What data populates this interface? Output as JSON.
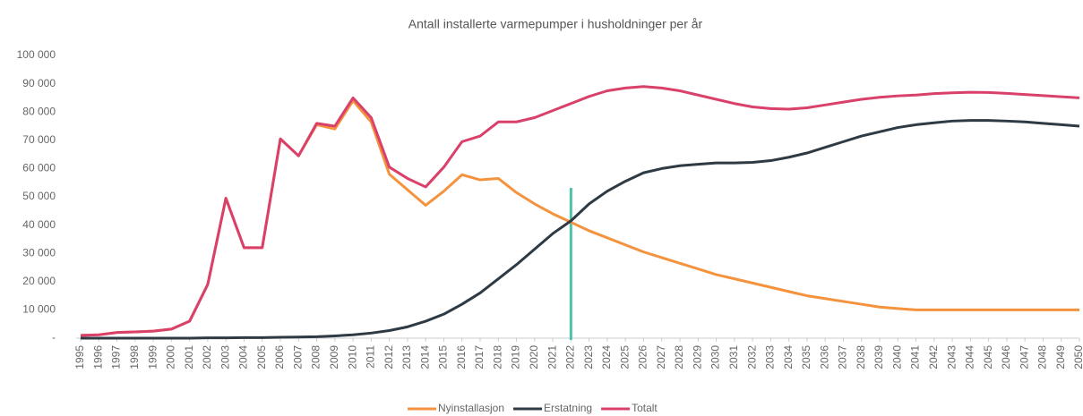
{
  "chart_data": {
    "type": "line",
    "title": "Antall installerte varmepumper i husholdninger per år",
    "categories": [
      "1995",
      "1996",
      "1997",
      "1998",
      "1999",
      "2000",
      "2001",
      "2002",
      "2003",
      "2004",
      "2005",
      "2006",
      "2007",
      "2008",
      "2009",
      "2010",
      "2011",
      "2012",
      "2013",
      "2014",
      "2015",
      "2016",
      "2017",
      "2018",
      "2019",
      "2020",
      "2021",
      "2022",
      "2023",
      "2024",
      "2025",
      "2026",
      "2027",
      "2028",
      "2029",
      "2030",
      "2031",
      "2032",
      "2033",
      "2034",
      "2035",
      "2036",
      "2037",
      "2038",
      "2039",
      "2040",
      "2041",
      "2042",
      "2043",
      "2044",
      "2045",
      "2046",
      "2047",
      "2048",
      "2049",
      "2050"
    ],
    "series": [
      {
        "name": "Nyinstallasjon",
        "color": "#f5923e",
        "values": [
          1000,
          1200,
          2000,
          2200,
          2500,
          3200,
          6000,
          19000,
          49500,
          32000,
          32000,
          70500,
          64500,
          75500,
          74000,
          84000,
          76500,
          58000,
          52500,
          47000,
          52000,
          57800,
          56000,
          56500,
          51500,
          47500,
          44000,
          41000,
          38000,
          35500,
          33000,
          30500,
          28500,
          26500,
          24500,
          22500,
          21000,
          19500,
          18000,
          16500,
          15000,
          14000,
          13000,
          12000,
          11000,
          10500,
          10000,
          10000,
          10000,
          10000,
          10000,
          10000,
          10000,
          10000,
          10000,
          10000
        ]
      },
      {
        "name": "Erstatning",
        "color": "#2e3a44",
        "values": [
          0,
          0,
          0,
          0,
          0,
          0,
          0,
          100,
          100,
          200,
          200,
          300,
          400,
          500,
          800,
          1200,
          1800,
          2700,
          4000,
          6000,
          8500,
          12000,
          16000,
          21000,
          26000,
          31500,
          37000,
          41500,
          47500,
          52000,
          55500,
          58500,
          60000,
          61000,
          61500,
          62000,
          62000,
          62200,
          62800,
          64000,
          65500,
          67500,
          69500,
          71500,
          73000,
          74500,
          75500,
          76200,
          76800,
          77000,
          77000,
          76800,
          76500,
          76000,
          75500,
          75000
        ]
      },
      {
        "name": "Totalt",
        "color": "#d9406a",
        "values": [
          1000,
          1200,
          2000,
          2200,
          2500,
          3200,
          6000,
          19000,
          49500,
          32000,
          32000,
          70500,
          64500,
          76000,
          75000,
          85000,
          78000,
          60500,
          56500,
          53500,
          60500,
          69500,
          71500,
          76500,
          76500,
          78000,
          80500,
          83000,
          85500,
          87500,
          88500,
          89000,
          88500,
          87500,
          86000,
          84500,
          83000,
          81800,
          81200,
          81000,
          81500,
          82500,
          83500,
          84500,
          85200,
          85700,
          86000,
          86500,
          86800,
          87000,
          86900,
          86600,
          86200,
          85800,
          85400,
          85000
        ]
      }
    ],
    "ylim": [
      0,
      100000
    ],
    "yticks": [
      {
        "value": 0,
        "label": "-"
      },
      {
        "value": 10000,
        "label": "10 000"
      },
      {
        "value": 20000,
        "label": "20 000"
      },
      {
        "value": 30000,
        "label": "30 000"
      },
      {
        "value": 40000,
        "label": "40 000"
      },
      {
        "value": 50000,
        "label": "50 000"
      },
      {
        "value": 60000,
        "label": "60 000"
      },
      {
        "value": 70000,
        "label": "70 000"
      },
      {
        "value": 80000,
        "label": "80 000"
      },
      {
        "value": 90000,
        "label": "90 000"
      },
      {
        "value": 100000,
        "label": "100 000"
      }
    ],
    "vline": {
      "x": "2022",
      "color": "#4fc1a8"
    },
    "legend": "bottom"
  }
}
